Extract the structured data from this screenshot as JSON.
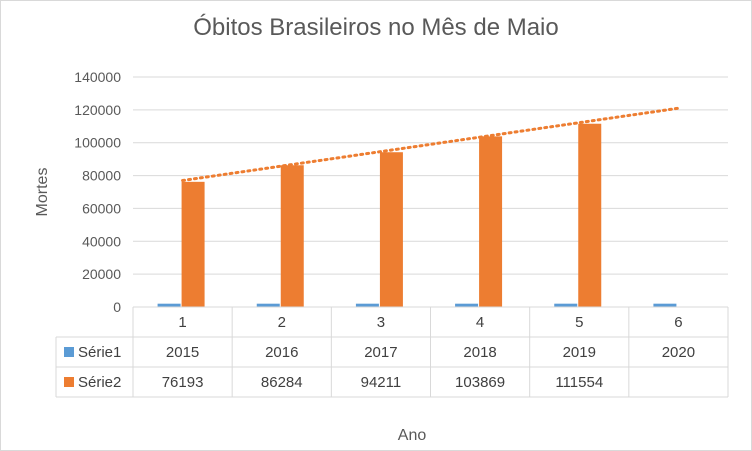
{
  "chart_data": {
    "type": "bar",
    "title": "Óbitos Brasileiros no Mês de Maio",
    "xlabel": "Ano",
    "ylabel": "Mortes",
    "categories": [
      "1",
      "2",
      "3",
      "4",
      "5",
      "6"
    ],
    "ylim": [
      0,
      140000
    ],
    "yticks": [
      "0",
      "20000",
      "40000",
      "60000",
      "80000",
      "100000",
      "120000",
      "140000"
    ],
    "gridlines": true,
    "series": [
      {
        "name": "Série1",
        "color": "#5b9bd5",
        "values": [
          2015,
          2016,
          2017,
          2018,
          2019,
          2020
        ],
        "labels": [
          "2015",
          "2016",
          "2017",
          "2018",
          "2019",
          "2020"
        ]
      },
      {
        "name": "Série2",
        "color": "#ed7d31",
        "values": [
          76193,
          86284,
          94211,
          103869,
          111554,
          null
        ],
        "labels": [
          "76193",
          "86284",
          "94211",
          "103869",
          "111554",
          ""
        ]
      }
    ],
    "trendline": {
      "series": "Série2",
      "type": "linear",
      "style": "dotted",
      "color": "#ed7d31",
      "start": 77000,
      "end": 121000
    },
    "legend": "data table"
  }
}
